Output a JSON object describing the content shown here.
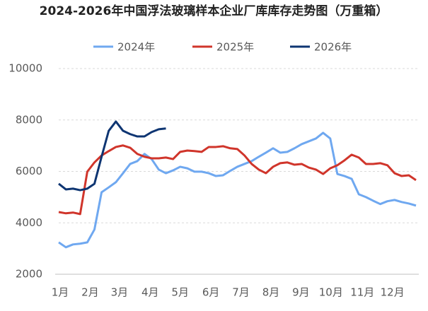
{
  "chart_data": {
    "type": "line",
    "title": "2024-2026年中国浮法玻璃样本企业厂库库存走势图（万重箱）",
    "x": [
      1,
      2,
      3,
      4,
      5,
      6,
      7,
      8,
      9,
      10,
      11,
      12,
      13,
      14,
      15,
      16,
      17,
      18,
      19,
      20,
      21,
      22,
      23,
      24,
      25,
      26,
      27,
      28,
      29,
      30,
      31,
      32,
      33,
      34,
      35,
      36,
      37,
      38,
      39,
      40,
      41,
      42,
      43,
      44,
      45,
      46,
      47,
      48,
      49,
      50,
      51
    ],
    "xlim": [
      1,
      51
    ],
    "xticks": [
      {
        "value": 1.2,
        "label": "1月"
      },
      {
        "value": 5.4,
        "label": "2月"
      },
      {
        "value": 9.5,
        "label": "3月"
      },
      {
        "value": 13.8,
        "label": "4月"
      },
      {
        "value": 18.0,
        "label": "5月"
      },
      {
        "value": 22.3,
        "label": "6月"
      },
      {
        "value": 26.5,
        "label": "7月"
      },
      {
        "value": 30.7,
        "label": "8月"
      },
      {
        "value": 34.9,
        "label": "9月"
      },
      {
        "value": 39.1,
        "label": "10月"
      },
      {
        "value": 43.5,
        "label": "11月"
      },
      {
        "value": 47.7,
        "label": "12月"
      }
    ],
    "ylim": [
      2000,
      10000
    ],
    "yticks": [
      2000,
      4000,
      6000,
      8000,
      10000
    ],
    "grid": true,
    "legend": "top",
    "series": [
      {
        "name": "2024年",
        "color": "#6fa8f0",
        "values": [
          3240,
          3050,
          3160,
          3190,
          3240,
          3740,
          5190,
          5380,
          5580,
          5930,
          6290,
          6400,
          6680,
          6480,
          6070,
          5930,
          6040,
          6180,
          6120,
          5990,
          5990,
          5930,
          5820,
          5850,
          6020,
          6180,
          6290,
          6400,
          6570,
          6730,
          6900,
          6730,
          6760,
          6900,
          7060,
          7170,
          7280,
          7500,
          7280,
          5900,
          5820,
          5710,
          5110,
          5000,
          4860,
          4730,
          4840,
          4890,
          4810,
          4750,
          4670
        ]
      },
      {
        "name": "2025年",
        "color": "#d0352b",
        "values": [
          4420,
          4370,
          4400,
          4340,
          5990,
          6350,
          6620,
          6790,
          6950,
          7010,
          6920,
          6680,
          6570,
          6510,
          6510,
          6540,
          6480,
          6760,
          6810,
          6790,
          6760,
          6950,
          6950,
          6980,
          6900,
          6870,
          6620,
          6290,
          6070,
          5930,
          6180,
          6320,
          6350,
          6260,
          6290,
          6150,
          6070,
          5900,
          6120,
          6240,
          6430,
          6650,
          6540,
          6290,
          6290,
          6320,
          6240,
          5930,
          5820,
          5850,
          5660
        ]
      },
      {
        "name": "2026年",
        "color": "#0e3572",
        "values": [
          5520,
          5300,
          5330,
          5270,
          5330,
          5520,
          6570,
          7580,
          7940,
          7580,
          7450,
          7360,
          7360,
          7530,
          7640,
          7670,
          null,
          null,
          null,
          null,
          null,
          null,
          null,
          null,
          null,
          null,
          null,
          null,
          null,
          null,
          null,
          null,
          null,
          null,
          null,
          null,
          null,
          null,
          null,
          null,
          null,
          null,
          null,
          null,
          null,
          null,
          null,
          null,
          null,
          null,
          null
        ]
      }
    ]
  }
}
